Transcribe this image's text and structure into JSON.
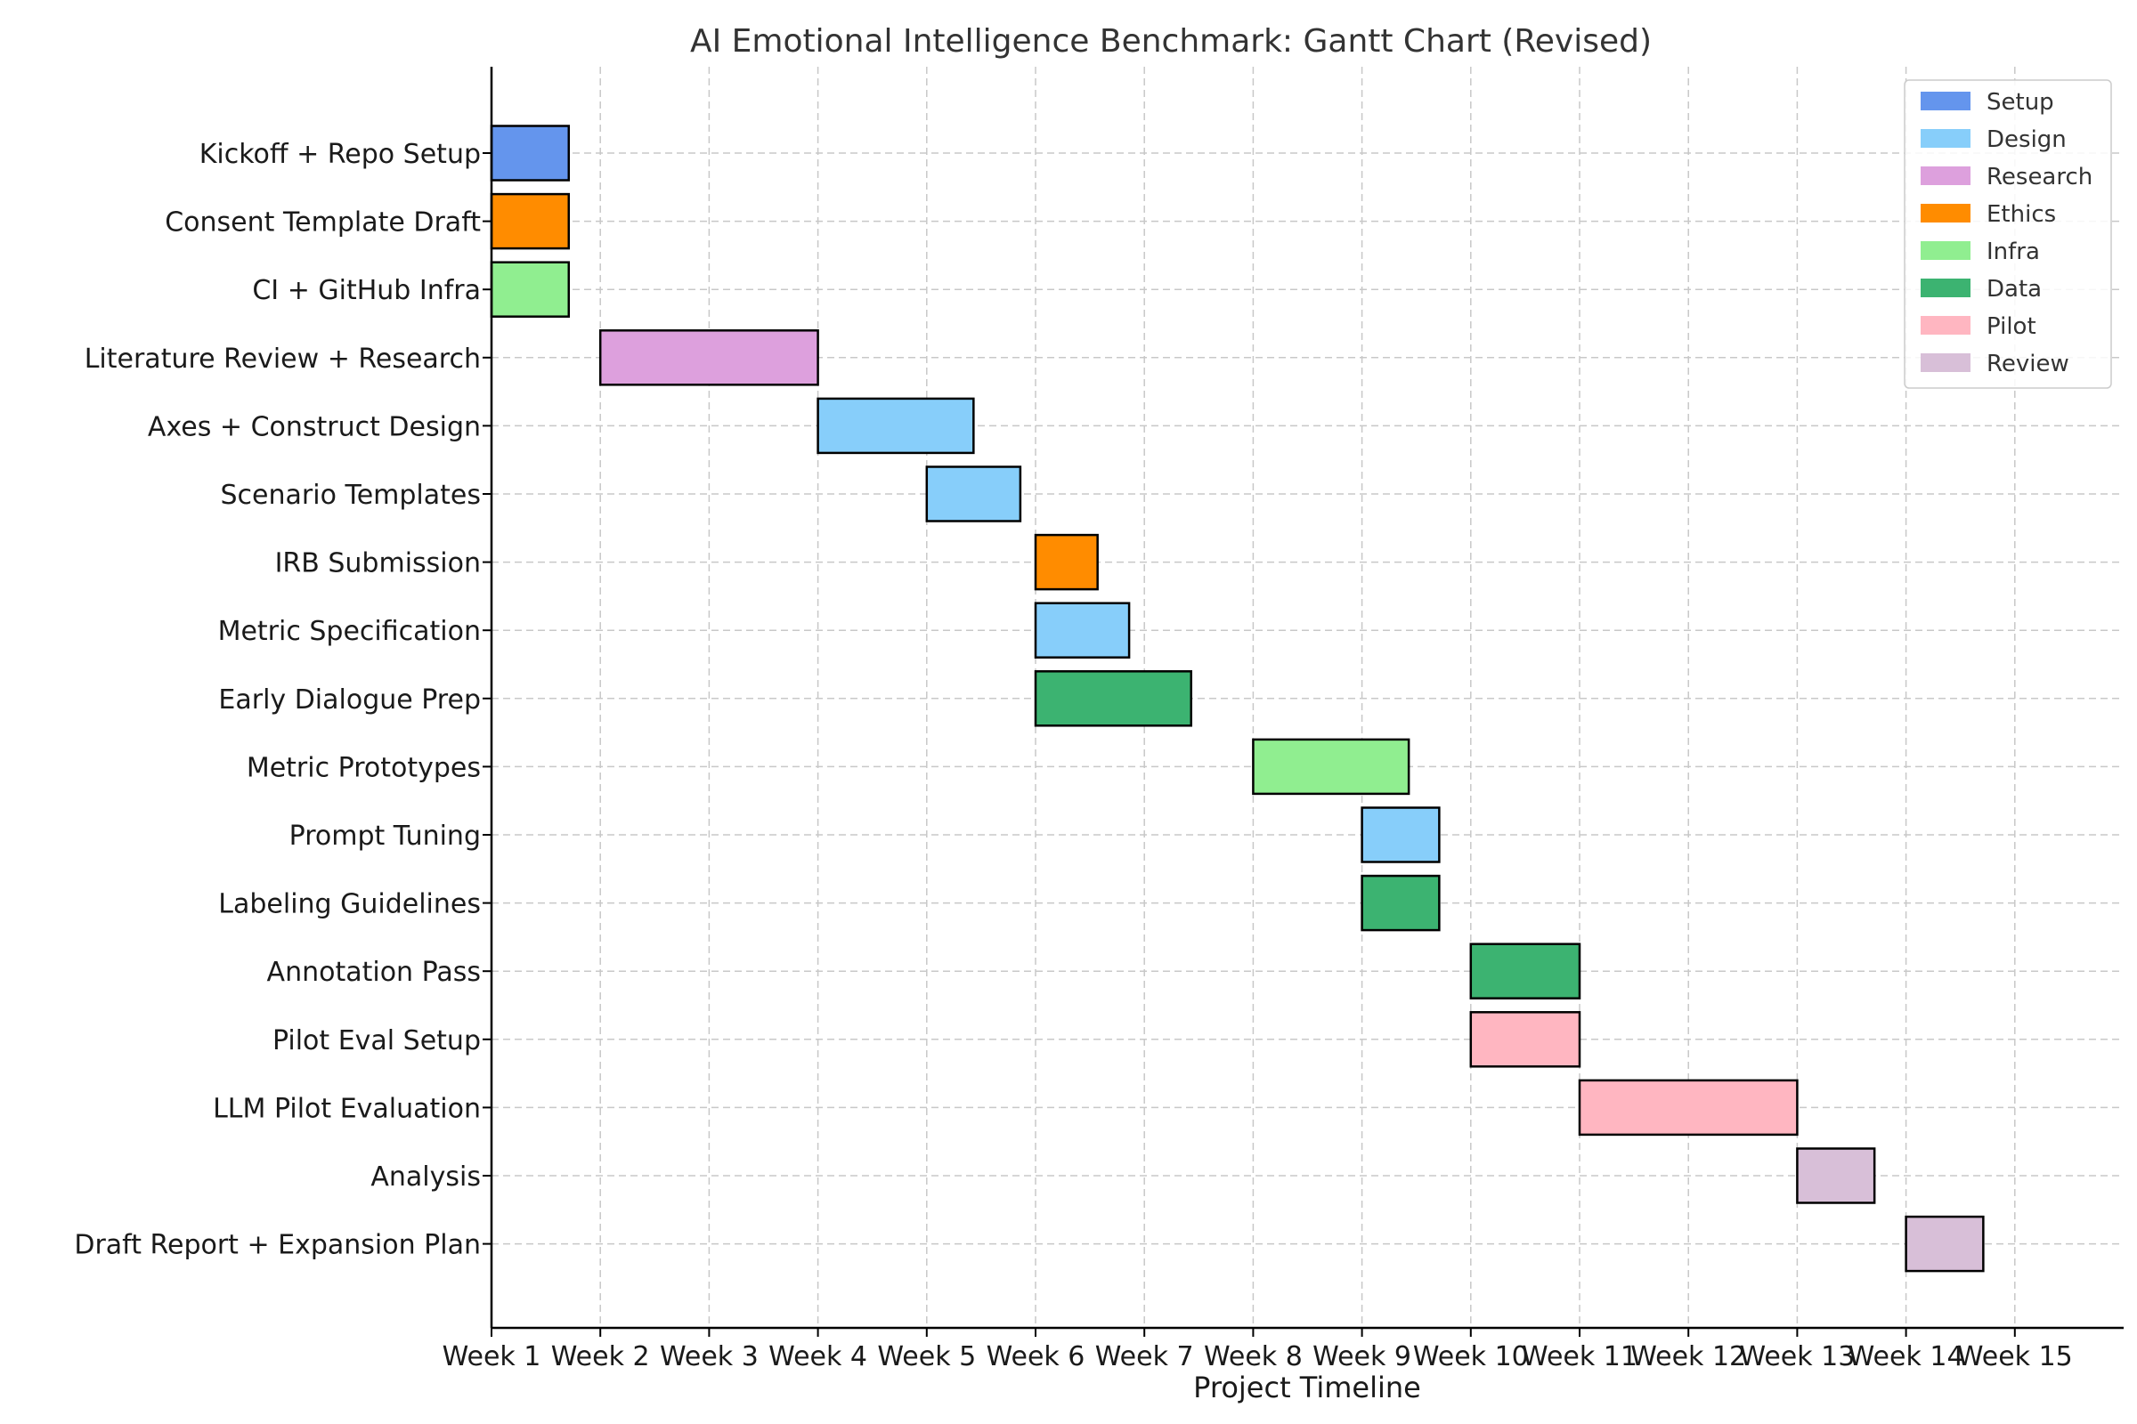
{
  "chart_data": {
    "type": "gantt",
    "title": "AI Emotional Intelligence Benchmark: Gantt Chart (Revised)",
    "xlabel": "Project Timeline",
    "ylabel": "",
    "x_ticks": [
      "Week 1",
      "Week 2",
      "Week 3",
      "Week 4",
      "Week 5",
      "Week 6",
      "Week 7",
      "Week 8",
      "Week 9",
      "Week 10",
      "Week 11",
      "Week 12",
      "Week 13",
      "Week 14",
      "Week 15"
    ],
    "xlim": [
      1,
      16
    ],
    "grid": true,
    "legend_position": "top-right",
    "categories": [
      {
        "name": "Setup",
        "color": "#6495ED"
      },
      {
        "name": "Design",
        "color": "#87CEFA"
      },
      {
        "name": "Research",
        "color": "#DDA0DD"
      },
      {
        "name": "Ethics",
        "color": "#FF8C00"
      },
      {
        "name": "Infra",
        "color": "#90EE90"
      },
      {
        "name": "Data",
        "color": "#3CB371"
      },
      {
        "name": "Pilot",
        "color": "#FFB6C1"
      },
      {
        "name": "Review",
        "color": "#D8BFD8"
      }
    ],
    "tasks": [
      {
        "name": "Kickoff + Repo Setup",
        "category": "Setup",
        "start_week": 1,
        "duration_weeks": 0.71
      },
      {
        "name": "Consent Template Draft",
        "category": "Ethics",
        "start_week": 1,
        "duration_weeks": 0.71
      },
      {
        "name": "CI + GitHub Infra",
        "category": "Infra",
        "start_week": 1,
        "duration_weeks": 0.71
      },
      {
        "name": "Literature Review + Research",
        "category": "Research",
        "start_week": 2,
        "duration_weeks": 2.0
      },
      {
        "name": "Axes + Construct Design",
        "category": "Design",
        "start_week": 4,
        "duration_weeks": 1.43
      },
      {
        "name": "Scenario Templates",
        "category": "Design",
        "start_week": 5,
        "duration_weeks": 0.86
      },
      {
        "name": "IRB Submission",
        "category": "Ethics",
        "start_week": 6,
        "duration_weeks": 0.57
      },
      {
        "name": "Metric Specification",
        "category": "Design",
        "start_week": 6,
        "duration_weeks": 0.86
      },
      {
        "name": "Early Dialogue Prep",
        "category": "Data",
        "start_week": 6,
        "duration_weeks": 1.43
      },
      {
        "name": "Metric Prototypes",
        "category": "Infra",
        "start_week": 8,
        "duration_weeks": 1.43
      },
      {
        "name": "Prompt Tuning",
        "category": "Design",
        "start_week": 9,
        "duration_weeks": 0.71
      },
      {
        "name": "Labeling Guidelines",
        "category": "Data",
        "start_week": 9,
        "duration_weeks": 0.71
      },
      {
        "name": "Annotation Pass",
        "category": "Data",
        "start_week": 10,
        "duration_weeks": 1.0
      },
      {
        "name": "Pilot Eval Setup",
        "category": "Pilot",
        "start_week": 10,
        "duration_weeks": 1.0
      },
      {
        "name": "LLM Pilot Evaluation",
        "category": "Pilot",
        "start_week": 11,
        "duration_weeks": 2.0
      },
      {
        "name": "Analysis",
        "category": "Review",
        "start_week": 13,
        "duration_weeks": 0.71
      },
      {
        "name": "Draft Report + Expansion Plan",
        "category": "Review",
        "start_week": 14,
        "duration_weeks": 0.71
      }
    ]
  }
}
